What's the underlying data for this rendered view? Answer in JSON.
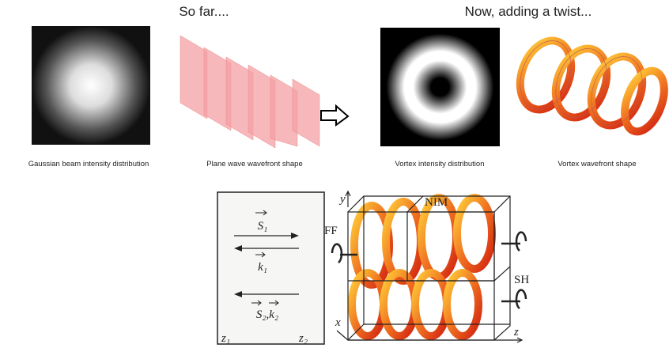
{
  "header": {
    "left": "So far....",
    "right": "Now, adding a twist..."
  },
  "captions": [
    "Gaussian beam  intensity distribution",
    "Plane wave wavefront shape",
    "Vortex intensity distribution",
    "Vortex wavefront shape"
  ],
  "diagram": {
    "labels": {
      "s1": "S₁",
      "k1": "k₁",
      "s2k2": "S₂,k₂",
      "z1": "z₁",
      "z2": "z₂",
      "y": "y",
      "nim": "NIM",
      "ff": "FF",
      "sh": "SH",
      "x": "x",
      "z": "z"
    }
  }
}
